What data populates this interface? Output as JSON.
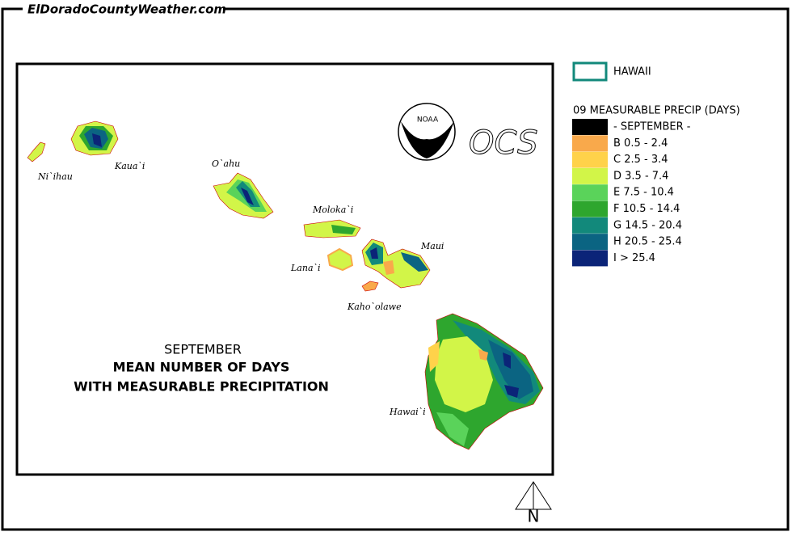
{
  "header": {
    "site": "ElDoradoCountyWeather.com"
  },
  "map": {
    "islands": [
      "Ni`ihau",
      "Kaua`i",
      "O`ahu",
      "Moloka`i",
      "Lana`i",
      "Maui",
      "Kaho`olawe",
      "Hawai`i"
    ],
    "title_lines": [
      "SEPTEMBER",
      "MEAN NUMBER OF DAYS",
      "WITH MEASURABLE PRECIPITATION"
    ],
    "logo": "NOAA",
    "agency": "OCS",
    "north": "N"
  },
  "legend": {
    "region": "HAWAII",
    "title": "09 MEASURABLE  PRECIP (DAYS)",
    "items": [
      {
        "label": "- SEPTEMBER -",
        "color": "#000000"
      },
      {
        "label": "B 0.5 - 2.4",
        "color": "#f9a94b"
      },
      {
        "label": "C 2.5 - 3.4",
        "color": "#ffd24a"
      },
      {
        "label": "D 3.5 - 7.4",
        "color": "#d2f548"
      },
      {
        "label": "E 7.5 - 10.4",
        "color": "#5ad35a"
      },
      {
        "label": "F 10.5 - 14.4",
        "color": "#2ea62e"
      },
      {
        "label": "G 14.5 - 20.4",
        "color": "#12897b"
      },
      {
        "label": "H 20.5 - 25.4",
        "color": "#0b6482"
      },
      {
        "label": "I > 25.4",
        "color": "#0b2478"
      }
    ]
  }
}
